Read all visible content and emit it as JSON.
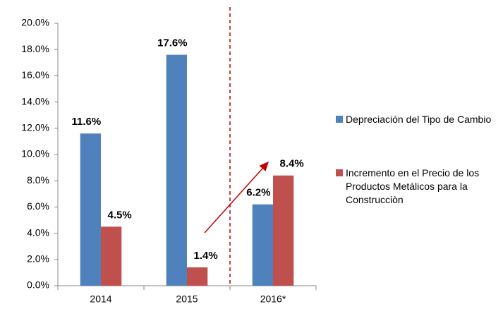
{
  "chart_data": {
    "type": "bar",
    "categories": [
      "2014",
      "2015",
      "2016*"
    ],
    "series": [
      {
        "name": "Depreciación del Tipo de Cambio",
        "color": "#4f81bd",
        "values": [
          11.6,
          17.6,
          6.2
        ],
        "value_labels": [
          "11.6%",
          "17.6%",
          "6.2%"
        ]
      },
      {
        "name": "Incremento en el Precio de los Productos Metálicos para la Construcciòn",
        "color": "#c0504d",
        "values": [
          4.5,
          1.4,
          8.4
        ],
        "value_labels": [
          "4.5%",
          "1.4%",
          "8.4%"
        ]
      }
    ],
    "ylim": [
      0,
      20
    ],
    "yticks": [
      {
        "value": 0,
        "label": "0.0%"
      },
      {
        "value": 2,
        "label": "2.0%"
      },
      {
        "value": 4,
        "label": "4.0%"
      },
      {
        "value": 6,
        "label": "6.0%"
      },
      {
        "value": 8,
        "label": "8.0%"
      },
      {
        "value": 10,
        "label": "10.0%"
      },
      {
        "value": 12,
        "label": "12.0%"
      },
      {
        "value": 14,
        "label": "14.0%"
      },
      {
        "value": 16,
        "label": "16.0%"
      },
      {
        "value": 18,
        "label": "18.0%"
      },
      {
        "value": 20,
        "label": "20.0%"
      }
    ],
    "legend": "right"
  }
}
